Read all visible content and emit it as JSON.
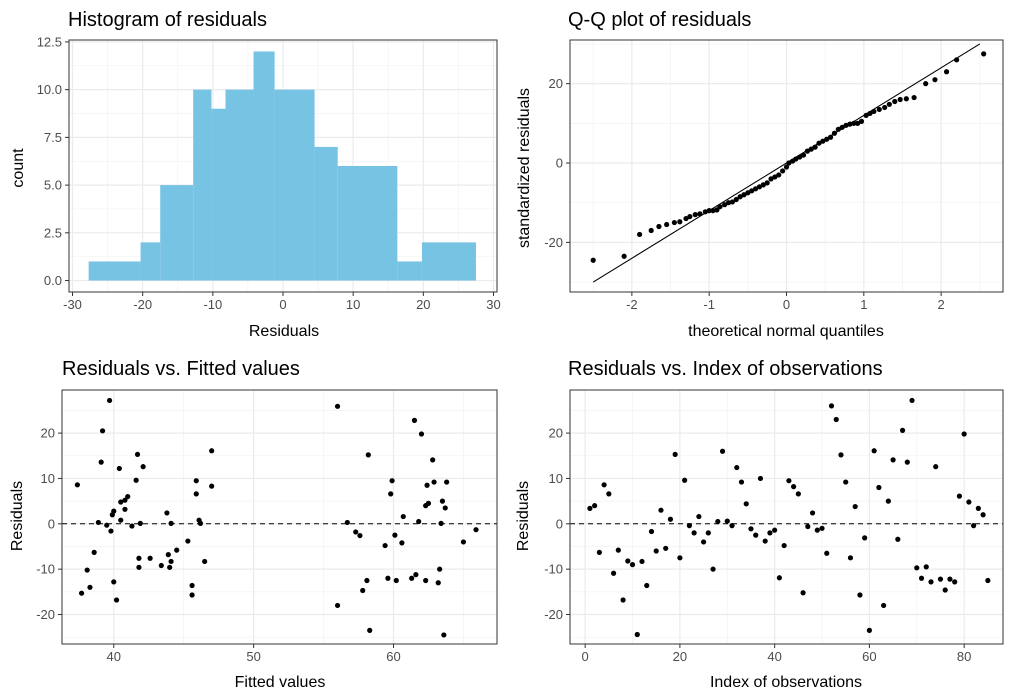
{
  "chart_data": [
    {
      "id": "hist",
      "type": "histogram",
      "title": "Histogram of residuals",
      "xlabel": "Residuals",
      "ylabel": "count",
      "xlim": [
        -30.5,
        30.5
      ],
      "ylim": [
        -0.6,
        12.6
      ],
      "xticks": [
        -30,
        -20,
        -10,
        0,
        10,
        20,
        30
      ],
      "yticks": [
        0,
        2.5,
        5,
        7.5,
        10,
        12.5
      ],
      "ytick_labels": [
        "0.0",
        "2.5",
        "5.0",
        "7.5",
        "10.0",
        "12.5"
      ],
      "bar_color": "#77c3e4",
      "bin_edges": [
        -27.7,
        -20.3,
        -17.5,
        -12.8,
        -10.2,
        -8.2,
        -4.2,
        -1.2,
        4.5,
        7.8,
        16.3,
        19.8,
        27.5
      ],
      "counts": [
        1,
        2,
        5,
        10,
        9,
        10,
        12,
        10,
        7,
        6,
        1,
        2
      ]
    },
    {
      "id": "qq",
      "type": "scatter",
      "title": "Q-Q plot of residuals",
      "xlabel": "theoretical normal quantiles",
      "ylabel": "standardized residuals",
      "xlim": [
        -2.8,
        2.8
      ],
      "ylim": [
        -32.5,
        31
      ],
      "xticks": [
        -2,
        -1,
        0,
        1,
        2
      ],
      "yticks": [
        -20,
        0,
        20
      ],
      "reference_line": [
        [
          -2.5,
          -30
        ],
        [
          2.5,
          30
        ]
      ],
      "points": [
        [
          -2.5,
          -24.5
        ],
        [
          -2.1,
          -23.5
        ],
        [
          -1.9,
          -18
        ],
        [
          -1.75,
          -17
        ],
        [
          -1.65,
          -16
        ],
        [
          -1.55,
          -15.5
        ],
        [
          -1.45,
          -15
        ],
        [
          -1.38,
          -14.8
        ],
        [
          -1.3,
          -14
        ],
        [
          -1.25,
          -13.5
        ],
        [
          -1.18,
          -13
        ],
        [
          -1.12,
          -12.8
        ],
        [
          -1.05,
          -12.3
        ],
        [
          -1.0,
          -12
        ],
        [
          -0.95,
          -12
        ],
        [
          -0.9,
          -11.8
        ],
        [
          -0.86,
          -11
        ],
        [
          -0.8,
          -10.5
        ],
        [
          -0.75,
          -10
        ],
        [
          -0.7,
          -9.8
        ],
        [
          -0.65,
          -9.2
        ],
        [
          -0.6,
          -8.5
        ],
        [
          -0.55,
          -8
        ],
        [
          -0.5,
          -7.5
        ],
        [
          -0.45,
          -7
        ],
        [
          -0.4,
          -6.5
        ],
        [
          -0.35,
          -6
        ],
        [
          -0.3,
          -5.5
        ],
        [
          -0.25,
          -5
        ],
        [
          -0.2,
          -4
        ],
        [
          -0.15,
          -3.5
        ],
        [
          -0.1,
          -3
        ],
        [
          -0.05,
          -2
        ],
        [
          0.0,
          -1
        ],
        [
          0.03,
          0
        ],
        [
          0.08,
          0.5
        ],
        [
          0.12,
          1
        ],
        [
          0.17,
          1.5
        ],
        [
          0.22,
          2
        ],
        [
          0.27,
          3
        ],
        [
          0.32,
          3.5
        ],
        [
          0.37,
          4
        ],
        [
          0.42,
          5
        ],
        [
          0.47,
          5.5
        ],
        [
          0.52,
          6
        ],
        [
          0.57,
          6.5
        ],
        [
          0.62,
          7.5
        ],
        [
          0.67,
          8.5
        ],
        [
          0.72,
          9
        ],
        [
          0.77,
          9.5
        ],
        [
          0.82,
          9.8
        ],
        [
          0.87,
          10
        ],
        [
          0.92,
          10
        ],
        [
          0.97,
          10.5
        ],
        [
          1.03,
          12
        ],
        [
          1.08,
          12.5
        ],
        [
          1.13,
          13
        ],
        [
          1.2,
          13.5
        ],
        [
          1.27,
          14
        ],
        [
          1.33,
          14.8
        ],
        [
          1.4,
          15.5
        ],
        [
          1.47,
          16
        ],
        [
          1.55,
          16.2
        ],
        [
          1.65,
          16.5
        ],
        [
          1.8,
          20
        ],
        [
          1.92,
          21
        ],
        [
          2.07,
          23
        ],
        [
          2.2,
          26
        ],
        [
          2.55,
          27.5
        ]
      ]
    },
    {
      "id": "fitted",
      "type": "scatter",
      "title": "Residuals vs. Fitted values",
      "xlabel": "Fitted values",
      "ylabel": "Residuals",
      "xlim": [
        36.3,
        67.4
      ],
      "ylim": [
        -26.5,
        29.5
      ],
      "xticks": [
        40,
        50,
        60
      ],
      "yticks": [
        -20,
        -10,
        0,
        10,
        20
      ],
      "hline": 0,
      "points": [
        [
          37.4,
          8.6
        ],
        [
          37.7,
          -15.3
        ],
        [
          38.1,
          -10.2
        ],
        [
          38.3,
          -14
        ],
        [
          38.6,
          -6.3
        ],
        [
          38.9,
          0.3
        ],
        [
          39.1,
          13.6
        ],
        [
          39.2,
          20.5
        ],
        [
          39.5,
          -0.3
        ],
        [
          39.7,
          27.2
        ],
        [
          39.8,
          -1.6
        ],
        [
          39.9,
          2
        ],
        [
          40.0,
          -12.8
        ],
        [
          40.0,
          2.8
        ],
        [
          40.2,
          -16.8
        ],
        [
          40.4,
          12.2
        ],
        [
          40.5,
          0.8
        ],
        [
          40.5,
          4.8
        ],
        [
          40.8,
          3.2
        ],
        [
          40.8,
          5.2
        ],
        [
          41.0,
          6
        ],
        [
          41.3,
          -0.5
        ],
        [
          41.6,
          9.6
        ],
        [
          41.7,
          15.3
        ],
        [
          41.8,
          -7.6
        ],
        [
          41.8,
          -9.6
        ],
        [
          41.9,
          0.1
        ],
        [
          42.1,
          12.6
        ],
        [
          42.6,
          -7.6
        ],
        [
          43.4,
          -9.2
        ],
        [
          43.8,
          2.4
        ],
        [
          43.9,
          -6.8
        ],
        [
          44.0,
          -9.6
        ],
        [
          44.1,
          -8.3
        ],
        [
          44.1,
          0.1
        ],
        [
          44.5,
          -5.8
        ],
        [
          45.3,
          -3.8
        ],
        [
          45.6,
          -13.6
        ],
        [
          45.6,
          -15.7
        ],
        [
          45.9,
          6.6
        ],
        [
          45.9,
          9.5
        ],
        [
          46.1,
          0.8
        ],
        [
          46.2,
          0.1
        ],
        [
          46.5,
          -8.3
        ],
        [
          47.0,
          8.3
        ],
        [
          47.0,
          16.1
        ],
        [
          56.0,
          25.9
        ],
        [
          56.0,
          -18
        ],
        [
          56.7,
          0.3
        ],
        [
          57.3,
          -1.8
        ],
        [
          57.6,
          -2.6
        ],
        [
          57.8,
          -14.7
        ],
        [
          58.1,
          -12.5
        ],
        [
          58.2,
          15.2
        ],
        [
          58.3,
          -23.5
        ],
        [
          59.4,
          -4.8
        ],
        [
          59.6,
          -12
        ],
        [
          59.8,
          6.6
        ],
        [
          59.9,
          9.5
        ],
        [
          60.1,
          -2.5
        ],
        [
          60.2,
          -12.5
        ],
        [
          60.6,
          -4.2
        ],
        [
          60.7,
          1.6
        ],
        [
          61.3,
          -12
        ],
        [
          61.5,
          22.8
        ],
        [
          61.6,
          -11.2
        ],
        [
          62.0,
          19.8
        ],
        [
          62.3,
          -12.5
        ],
        [
          62.3,
          4
        ],
        [
          62.5,
          4.5
        ],
        [
          62.8,
          14.1
        ],
        [
          62.9,
          9.2
        ],
        [
          63.2,
          -13
        ],
        [
          63.3,
          -10
        ],
        [
          63.4,
          0.1
        ],
        [
          63.5,
          5
        ],
        [
          63.6,
          -24.5
        ],
        [
          63.7,
          3.5
        ],
        [
          63.8,
          9.2
        ],
        [
          65.0,
          -4
        ],
        [
          65.9,
          -1.3
        ],
        [
          62.4,
          8.5
        ],
        [
          61.8,
          0.5
        ]
      ]
    },
    {
      "id": "index",
      "type": "scatter",
      "title": "Residuals vs. Index of observations",
      "xlabel": "Index of observations",
      "ylabel": "Residuals",
      "xlim": [
        -3.2,
        88.2
      ],
      "ylim": [
        -26.5,
        29.5
      ],
      "xticks": [
        0,
        20,
        40,
        60,
        80
      ],
      "yticks": [
        -20,
        -10,
        0,
        10,
        20
      ],
      "hline": 0,
      "points": [
        [
          1,
          3.4
        ],
        [
          2,
          4
        ],
        [
          3,
          -6.3
        ],
        [
          4,
          8.6
        ],
        [
          5,
          6.6
        ],
        [
          6,
          -10.9
        ],
        [
          7,
          -5.8
        ],
        [
          8,
          -16.8
        ],
        [
          9,
          -8.2
        ],
        [
          10,
          -9
        ],
        [
          11,
          -24.4
        ],
        [
          12,
          -8.3
        ],
        [
          13,
          -13.6
        ],
        [
          14,
          -1.7
        ],
        [
          15,
          -6
        ],
        [
          16,
          3
        ],
        [
          17,
          -5.4
        ],
        [
          18,
          1
        ],
        [
          19,
          15.3
        ],
        [
          20,
          -7.5
        ],
        [
          21,
          9.6
        ],
        [
          22,
          -0.4
        ],
        [
          23,
          -2
        ],
        [
          24,
          1.6
        ],
        [
          25,
          -4
        ],
        [
          26,
          -2
        ],
        [
          27,
          -10
        ],
        [
          28,
          0.5
        ],
        [
          29,
          16
        ],
        [
          30,
          0.6
        ],
        [
          31,
          -0.4
        ],
        [
          32,
          12.4
        ],
        [
          33,
          9.2
        ],
        [
          34,
          4.4
        ],
        [
          35,
          -1.1
        ],
        [
          36,
          -2.5
        ],
        [
          37,
          10
        ],
        [
          38,
          -3.8
        ],
        [
          39,
          -2
        ],
        [
          40,
          -1.4
        ],
        [
          41,
          -11.9
        ],
        [
          42,
          -4.8
        ],
        [
          43,
          9.5
        ],
        [
          44,
          8.2
        ],
        [
          45,
          6.6
        ],
        [
          46,
          -15.2
        ],
        [
          47,
          -0.6
        ],
        [
          48,
          2.4
        ],
        [
          49,
          -1.4
        ],
        [
          50,
          -1
        ],
        [
          51,
          -6.5
        ],
        [
          52,
          26
        ],
        [
          53,
          23
        ],
        [
          54,
          15.2
        ],
        [
          55,
          9.2
        ],
        [
          56,
          -7.5
        ],
        [
          57,
          3.8
        ],
        [
          58,
          -15.7
        ],
        [
          59,
          -3.1
        ],
        [
          60,
          -23.5
        ],
        [
          61,
          16.1
        ],
        [
          62,
          8
        ],
        [
          63,
          -18
        ],
        [
          64,
          5
        ],
        [
          65,
          14.1
        ],
        [
          66,
          -3.4
        ],
        [
          67,
          20.6
        ],
        [
          68,
          13.6
        ],
        [
          69,
          27.2
        ],
        [
          70,
          -9.7
        ],
        [
          71,
          -12
        ],
        [
          72,
          -9.5
        ],
        [
          73,
          -12.8
        ],
        [
          74,
          12.6
        ],
        [
          75,
          -12.2
        ],
        [
          76,
          -14.6
        ],
        [
          77,
          -12.2
        ],
        [
          78,
          -12.8
        ],
        [
          79,
          6.1
        ],
        [
          80,
          19.8
        ],
        [
          81,
          4.8
        ],
        [
          82,
          -0.4
        ],
        [
          83,
          3.4
        ],
        [
          84,
          2
        ],
        [
          85,
          -12.5
        ]
      ]
    }
  ]
}
